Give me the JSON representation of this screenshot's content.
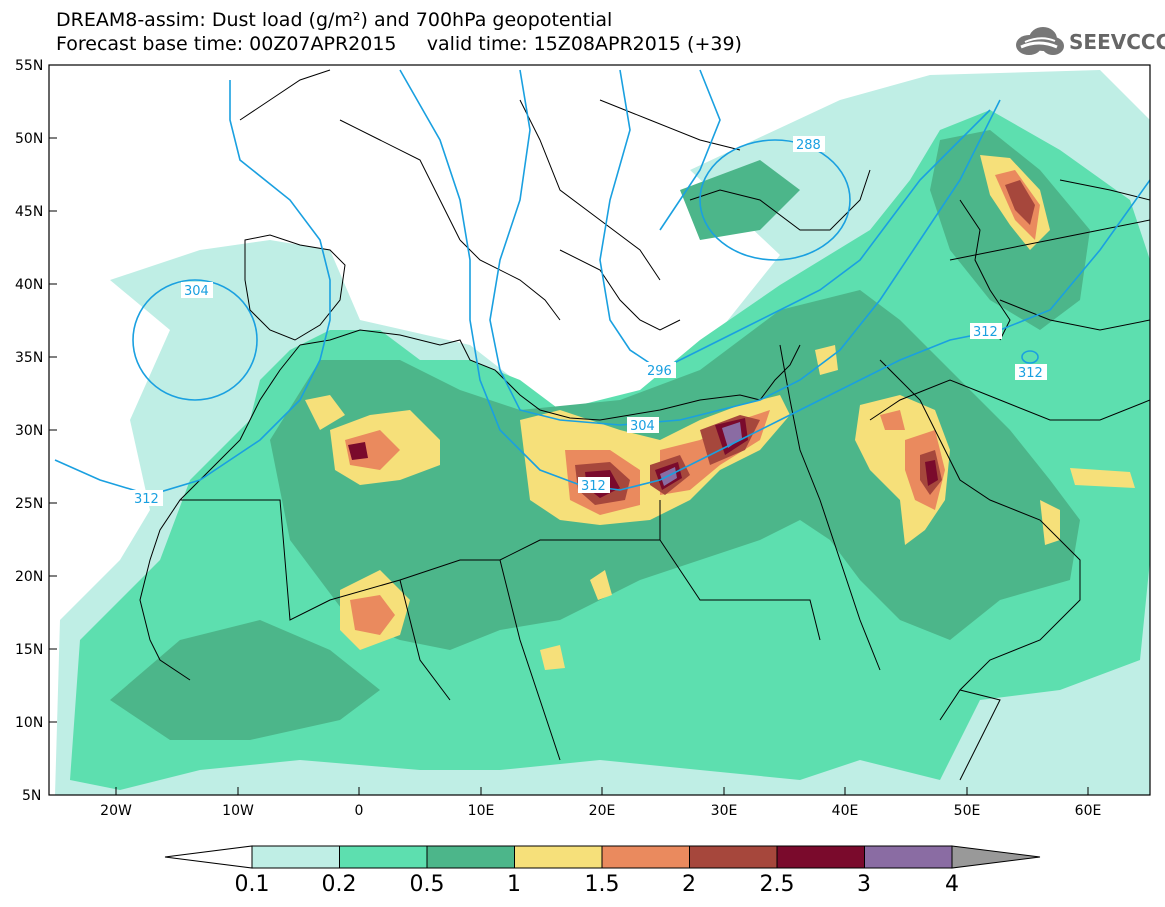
{
  "header": {
    "title_line1": "DREAM8-assim: Dust load (g/m²) and 700hPa geopotential",
    "base_time_label": "Forecast base time: 00Z07APR2015",
    "valid_time_label": "valid time: 15Z08APR2015 (+39)",
    "logo_text": "SEEVCCC"
  },
  "map": {
    "lat_ticks": [
      "55N",
      "50N",
      "45N",
      "40N",
      "35N",
      "30N",
      "25N",
      "20N",
      "15N",
      "10N",
      "5N"
    ],
    "lon_ticks": [
      "20W",
      "10W",
      "0",
      "10E",
      "20E",
      "30E",
      "40E",
      "50E",
      "60E"
    ],
    "contour_labels": [
      "288",
      "296",
      "304",
      "304",
      "312",
      "312",
      "312",
      "312"
    ]
  },
  "legend": {
    "bins": [
      {
        "from": "0.1",
        "to": "0.2",
        "color": "#bfeee5"
      },
      {
        "from": "0.2",
        "to": "0.5",
        "color": "#5ddfaf"
      },
      {
        "from": "0.5",
        "to": "1",
        "color": "#4cb68a"
      },
      {
        "from": "1",
        "to": "1.5",
        "color": "#f6e07a"
      },
      {
        "from": "1.5",
        "to": "2",
        "color": "#ea8a5e"
      },
      {
        "from": "2",
        "to": "2.5",
        "color": "#a6473c"
      },
      {
        "from": "2.5",
        "to": "3",
        "color": "#7a0a2c"
      },
      {
        "from": "3",
        "to": "4",
        "color": "#8a6ca3"
      }
    ],
    "labels": [
      "0.1",
      "0.2",
      "0.5",
      "1",
      "1.5",
      "2",
      "2.5",
      "3",
      "4"
    ],
    "over_color": "#999999"
  },
  "colors": {
    "contour": "#1aa0e0",
    "border": "#000000",
    "background": "#ffffff"
  }
}
